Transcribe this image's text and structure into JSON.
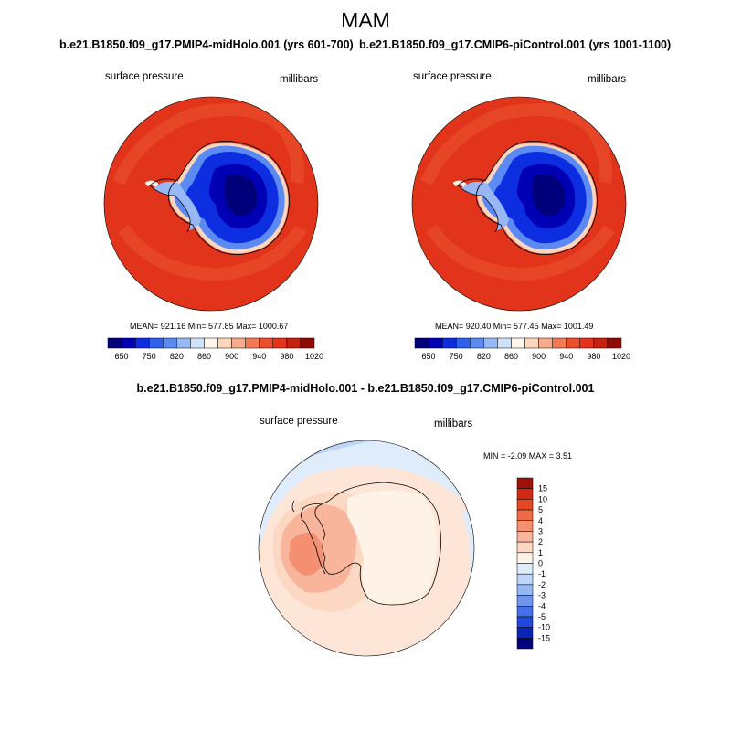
{
  "figure": {
    "title": "MAM"
  },
  "panels": [
    {
      "title": "b.e21.B1850.f09_g17.PMIP4-midHolo.001 (yrs 601-700)",
      "left_label": "surface pressure",
      "right_label": "millibars",
      "stats": "MEAN= 921.16  Min= 577.85  Max= 1000.67",
      "colorbar": {
        "labels": [
          "650",
          "750",
          "820",
          "860",
          "900",
          "940",
          "980",
          "1020"
        ],
        "colors": [
          "#00007a",
          "#0000b5",
          "#0c2ee0",
          "#2f5fed",
          "#5b8af2",
          "#98b7f6",
          "#d0e2fb",
          "#fff6ec",
          "#fcd6bd",
          "#f8ab8b",
          "#f27a55",
          "#ea4e2b",
          "#e2341b",
          "#c81f0e",
          "#8f0c05"
        ]
      }
    },
    {
      "title": "b.e21.B1850.f09_g17.CMIP6-piControl.001 (yrs 1001-1100)",
      "left_label": "surface pressure",
      "right_label": "millibars",
      "stats": "MEAN= 920.40  Min= 577.45  Max= 1001.49",
      "colorbar": {
        "labels": [
          "650",
          "750",
          "820",
          "860",
          "900",
          "940",
          "980",
          "1020"
        ],
        "colors": [
          "#00007a",
          "#0000b5",
          "#0c2ee0",
          "#2f5fed",
          "#5b8af2",
          "#98b7f6",
          "#d0e2fb",
          "#fff6ec",
          "#fcd6bd",
          "#f8ab8b",
          "#f27a55",
          "#ea4e2b",
          "#e2341b",
          "#c81f0e",
          "#8f0c05"
        ]
      }
    },
    {
      "title": "b.e21.B1850.f09_g17.PMIP4-midHolo.001 - b.e21.B1850.f09_g17.CMIP6-piControl.001",
      "left_label": "surface pressure",
      "right_label": "millibars",
      "stats": "MIN =  -2.09 MAX =   3.51",
      "colorbar": {
        "labels": [
          "15",
          "10",
          "5",
          "4",
          "3",
          "2",
          "1",
          "0",
          "-1",
          "-2",
          "-3",
          "-4",
          "-5",
          "-10",
          "-15"
        ],
        "colors": [
          "#9c1408",
          "#cf2a12",
          "#e64725",
          "#ef6b45",
          "#f49071",
          "#f8b59b",
          "#fcd8c3",
          "#fff2e6",
          "#deecfc",
          "#bdd5f8",
          "#96b7f4",
          "#6e96ef",
          "#4670ea",
          "#2148dc",
          "#0a25b8",
          "#02047e"
        ]
      }
    }
  ],
  "colors": {
    "coastline": "#000000",
    "ocean_fill_mean": "#e2341b",
    "ocean_fill_diff": "#fde6d8"
  }
}
